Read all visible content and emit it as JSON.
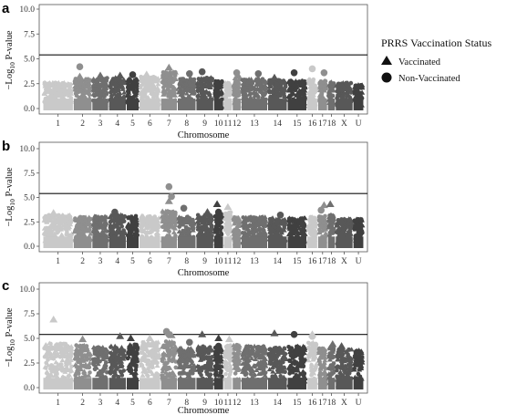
{
  "legend": {
    "title": "PRRS Vaccination Status",
    "items": [
      {
        "label": "Vaccinated",
        "shape": "triangle"
      },
      {
        "label": "Non-Vaccinated",
        "shape": "circle"
      }
    ]
  },
  "chart_data": [
    {
      "type": "scatter",
      "subtype": "manhattan",
      "panel": "a",
      "xlabel": "Chromosome",
      "ylabel": "−Log10 P-value",
      "ylim": [
        0,
        10.5
      ],
      "yticks": [
        0.0,
        2.5,
        5.0,
        7.5,
        10.0
      ],
      "ytick_labels": [
        "0.0",
        "2.5",
        "5.0",
        "7.5",
        "10.0"
      ],
      "threshold": 5.4,
      "categories": [
        "1",
        "2",
        "3",
        "4",
        "5",
        "6",
        "7",
        "8",
        "9",
        "10",
        "11",
        "12",
        "13",
        "14",
        "15",
        "16",
        "17",
        "18",
        "X",
        "U"
      ],
      "bulk_peak": [
        2.6,
        3.0,
        3.1,
        3.1,
        3.0,
        3.2,
        3.8,
        3.0,
        3.1,
        2.8,
        2.6,
        3.1,
        3.0,
        2.9,
        2.8,
        3.0,
        2.8,
        2.8,
        2.6,
        2.4
      ],
      "series": [
        {
          "name": "Vaccinated",
          "shape": "triangle",
          "points": [
            [
              2,
              3.2
            ],
            [
              3,
              3.3
            ],
            [
              4,
              3.3
            ],
            [
              6,
              3.4
            ],
            [
              7,
              4.1
            ],
            [
              12,
              3.3
            ],
            [
              14,
              3.1
            ]
          ]
        },
        {
          "name": "Non-Vaccinated",
          "shape": "circle",
          "points": [
            [
              2,
              4.2
            ],
            [
              5,
              3.4
            ],
            [
              8,
              3.5
            ],
            [
              9,
              3.7
            ],
            [
              12,
              3.6
            ],
            [
              13,
              3.5
            ],
            [
              15,
              3.6
            ],
            [
              16,
              4.0
            ],
            [
              17,
              3.6
            ]
          ]
        }
      ]
    },
    {
      "type": "scatter",
      "subtype": "manhattan",
      "panel": "b",
      "xlabel": "Chromosome",
      "ylabel": "−Log10 P-value",
      "ylim": [
        0,
        10.5
      ],
      "yticks": [
        0.0,
        2.5,
        5.0,
        7.5,
        10.0
      ],
      "ytick_labels": [
        "0.0",
        "2.5",
        "5.0",
        "7.5",
        "10.0"
      ],
      "threshold": 5.4,
      "categories": [
        "1",
        "2",
        "3",
        "4",
        "5",
        "6",
        "7",
        "8",
        "9",
        "10",
        "11",
        "12",
        "13",
        "14",
        "15",
        "16",
        "17",
        "18",
        "X",
        "U"
      ],
      "bulk_peak": [
        3.2,
        3.0,
        3.1,
        3.2,
        3.1,
        3.1,
        3.6,
        3.0,
        3.2,
        3.3,
        3.5,
        3.0,
        3.0,
        2.9,
        2.9,
        3.0,
        3.1,
        3.2,
        2.8,
        2.8
      ],
      "series": [
        {
          "name": "Vaccinated",
          "shape": "triangle",
          "points": [
            [
              1,
              3.4
            ],
            [
              7,
              4.6
            ],
            [
              9,
              3.5
            ],
            [
              10,
              4.3
            ],
            [
              11,
              4.0
            ],
            [
              17,
              4.2
            ],
            [
              18,
              4.3
            ]
          ]
        },
        {
          "name": "Non-Vaccinated",
          "shape": "circle",
          "points": [
            [
              4,
              3.5
            ],
            [
              7,
              6.1
            ],
            [
              7,
              5.1
            ],
            [
              8,
              3.9
            ],
            [
              10,
              3.5
            ],
            [
              14,
              3.2
            ],
            [
              17,
              3.7
            ]
          ]
        }
      ]
    },
    {
      "type": "scatter",
      "subtype": "manhattan",
      "panel": "c",
      "xlabel": "Chromosome",
      "ylabel": "−Log10 P-value",
      "ylim": [
        0,
        10.5
      ],
      "yticks": [
        0.0,
        2.5,
        5.0,
        7.5,
        10.0
      ],
      "ytick_labels": [
        "0.0",
        "2.5",
        "5.0",
        "7.5",
        "10.0"
      ],
      "threshold": 5.4,
      "categories": [
        "1",
        "2",
        "3",
        "4",
        "5",
        "6",
        "7",
        "8",
        "9",
        "10",
        "11",
        "12",
        "13",
        "14",
        "15",
        "16",
        "17",
        "18",
        "X",
        "U"
      ],
      "bulk_peak": [
        4.5,
        4.3,
        4.1,
        4.2,
        4.4,
        4.6,
        4.7,
        4.0,
        4.2,
        4.1,
        4.3,
        4.4,
        4.2,
        4.1,
        4.2,
        4.7,
        4.0,
        4.1,
        3.9,
        3.8
      ],
      "series": [
        {
          "name": "Vaccinated",
          "shape": "triangle",
          "points": [
            [
              1,
              6.9
            ],
            [
              2,
              4.9
            ],
            [
              4,
              5.2
            ],
            [
              5,
              5.0
            ],
            [
              6,
              5.0
            ],
            [
              7,
              5.3
            ],
            [
              9,
              5.4
            ],
            [
              10,
              5.0
            ],
            [
              11,
              4.9
            ],
            [
              14,
              5.5
            ],
            [
              16,
              5.4
            ],
            [
              18,
              4.4
            ],
            [
              19,
              4.2
            ]
          ]
        },
        {
          "name": "Non-Vaccinated",
          "shape": "circle",
          "points": [
            [
              7,
              5.7
            ],
            [
              7,
              5.4
            ],
            [
              8,
              4.6
            ],
            [
              9,
              3.9
            ],
            [
              10,
              4.2
            ],
            [
              13,
              4.0
            ],
            [
              15,
              5.4
            ],
            [
              16,
              5.2
            ]
          ]
        }
      ]
    }
  ],
  "panels_meta": [
    {
      "letter": "a"
    },
    {
      "letter": "b"
    },
    {
      "letter": "c"
    }
  ]
}
